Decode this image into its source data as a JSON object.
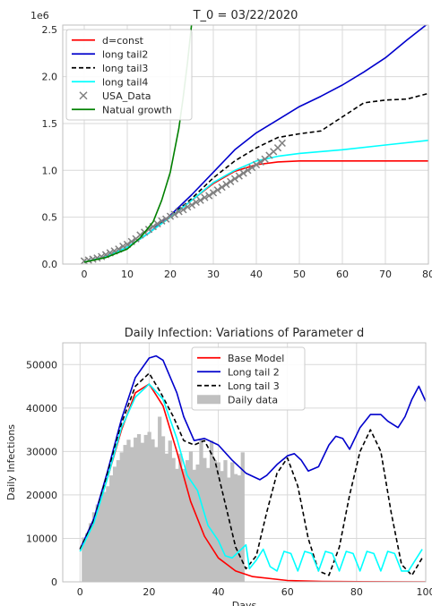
{
  "chart_data": [
    {
      "type": "line",
      "title": "T_0 = 03/22/2020",
      "xlabel": "",
      "ylabel": "",
      "y_multiplier_label": "1e6",
      "xlim": [
        -5,
        80
      ],
      "ylim": [
        0,
        2.55
      ],
      "xticks": [
        0,
        10,
        20,
        30,
        40,
        50,
        60,
        70,
        80
      ],
      "yticks": [
        0.0,
        0.5,
        1.0,
        1.5,
        2.0,
        2.5
      ],
      "ytick_labels": [
        "0.0",
        "0.5",
        "1.0",
        "1.5",
        "2.0",
        "2.5"
      ],
      "grid": true,
      "legend_position": "upper-left",
      "series": [
        {
          "name": "d=const",
          "color": "#ff0000",
          "style": "solid",
          "x": [
            0,
            5,
            10,
            15,
            20,
            25,
            30,
            35,
            40,
            45,
            50,
            60,
            70,
            80
          ],
          "y": [
            0.02,
            0.08,
            0.18,
            0.33,
            0.5,
            0.68,
            0.86,
            0.99,
            1.06,
            1.09,
            1.1,
            1.1,
            1.1,
            1.1
          ]
        },
        {
          "name": "long tail2",
          "color": "#0000cc",
          "style": "solid",
          "x": [
            0,
            5,
            10,
            15,
            20,
            25,
            30,
            35,
            40,
            45,
            50,
            55,
            60,
            65,
            70,
            75,
            80
          ],
          "y": [
            0.02,
            0.08,
            0.18,
            0.33,
            0.52,
            0.74,
            0.98,
            1.22,
            1.4,
            1.54,
            1.68,
            1.79,
            1.91,
            2.05,
            2.2,
            2.39,
            2.57
          ]
        },
        {
          "name": "long tail3",
          "color": "#000000",
          "style": "dashed",
          "x": [
            0,
            5,
            10,
            15,
            20,
            25,
            30,
            35,
            40,
            45,
            50,
            55,
            60,
            65,
            70,
            75,
            80
          ],
          "y": [
            0.02,
            0.08,
            0.18,
            0.33,
            0.51,
            0.7,
            0.92,
            1.1,
            1.24,
            1.35,
            1.39,
            1.42,
            1.57,
            1.72,
            1.75,
            1.76,
            1.82
          ]
        },
        {
          "name": "long tail4",
          "color": "#00ffff",
          "style": "solid",
          "x": [
            0,
            5,
            10,
            15,
            20,
            25,
            30,
            35,
            40,
            45,
            50,
            60,
            70,
            80
          ],
          "y": [
            0.02,
            0.08,
            0.18,
            0.33,
            0.5,
            0.68,
            0.87,
            1.0,
            1.1,
            1.15,
            1.18,
            1.22,
            1.27,
            1.32
          ]
        },
        {
          "name": "USA_Data",
          "color": "#808080",
          "style": "marker-x",
          "x": [
            0,
            1,
            2,
            3,
            4,
            5,
            6,
            7,
            8,
            9,
            10,
            11,
            12,
            13,
            14,
            15,
            16,
            17,
            18,
            19,
            20,
            21,
            22,
            23,
            24,
            25,
            26,
            27,
            28,
            29,
            30,
            31,
            32,
            33,
            34,
            35,
            36,
            37,
            38,
            39,
            40,
            41,
            42,
            43,
            44,
            45,
            46
          ],
          "y": [
            0.033,
            0.043,
            0.053,
            0.065,
            0.08,
            0.1,
            0.12,
            0.14,
            0.16,
            0.19,
            0.21,
            0.24,
            0.27,
            0.31,
            0.34,
            0.37,
            0.4,
            0.43,
            0.46,
            0.48,
            0.51,
            0.53,
            0.56,
            0.58,
            0.61,
            0.63,
            0.66,
            0.68,
            0.71,
            0.73,
            0.76,
            0.79,
            0.82,
            0.85,
            0.88,
            0.91,
            0.94,
            0.97,
            1.0,
            1.03,
            1.06,
            1.09,
            1.12,
            1.16,
            1.2,
            1.24,
            1.29
          ]
        },
        {
          "name": "Natual growth",
          "color": "#008000",
          "style": "solid",
          "x": [
            0,
            5,
            10,
            13,
            16,
            18,
            20,
            22,
            23,
            24,
            25
          ],
          "y": [
            0.02,
            0.07,
            0.16,
            0.28,
            0.45,
            0.68,
            0.98,
            1.45,
            1.78,
            2.15,
            2.58
          ]
        }
      ]
    },
    {
      "type": "line",
      "title": "Daily Infection: Variations of Parameter d",
      "xlabel": "Days",
      "ylabel": "Daily Infections",
      "xlim": [
        -5,
        100
      ],
      "ylim": [
        0,
        55000
      ],
      "xticks": [
        0,
        20,
        40,
        60,
        80,
        100
      ],
      "yticks": [
        0,
        10000,
        20000,
        30000,
        40000,
        50000
      ],
      "grid": true,
      "legend_position": "upper-center",
      "bars": {
        "name": "Daily data",
        "color": "#c0c0c0",
        "x": [
          1,
          2,
          3,
          4,
          5,
          6,
          7,
          8,
          9,
          10,
          11,
          12,
          13,
          14,
          15,
          16,
          17,
          18,
          19,
          20,
          21,
          22,
          23,
          24,
          25,
          26,
          27,
          28,
          29,
          30,
          31,
          32,
          33,
          34,
          35,
          36,
          37,
          38,
          39,
          40,
          41,
          42,
          43,
          44,
          45,
          46,
          47
        ],
        "values": [
          10200,
          11200,
          13500,
          16000,
          17800,
          19500,
          20700,
          22000,
          24500,
          26500,
          28000,
          29800,
          31500,
          32700,
          31000,
          33200,
          34000,
          32000,
          33800,
          34500,
          32800,
          31000,
          38000,
          33500,
          29500,
          32500,
          28500,
          26000,
          29500,
          26000,
          28000,
          30000,
          25800,
          27000,
          33000,
          28500,
          26200,
          32500,
          28000,
          27500,
          25500,
          28000,
          24000,
          27500,
          24800,
          24500,
          29800
        ]
      },
      "series": [
        {
          "name": "Base Model",
          "color": "#ff0000",
          "style": "solid",
          "x": [
            0,
            4,
            8,
            12,
            16,
            20,
            24,
            28,
            32,
            36,
            40,
            45,
            50,
            60,
            70,
            80,
            90,
            100
          ],
          "y": [
            7500,
            14000,
            24000,
            35000,
            43500,
            45500,
            40500,
            30000,
            18500,
            10500,
            5500,
            2500,
            1200,
            300,
            100,
            50,
            20,
            10
          ]
        },
        {
          "name": "Long tail 2",
          "color": "#0000cc",
          "style": "solid",
          "x": [
            0,
            4,
            8,
            12,
            16,
            20,
            22,
            24,
            28,
            30,
            33,
            36,
            40,
            44,
            48,
            52,
            54,
            57,
            60,
            62,
            64,
            66,
            69,
            72,
            74,
            76,
            78,
            81,
            84,
            87,
            89,
            92,
            94,
            96,
            98,
            100
          ],
          "y": [
            7500,
            14500,
            25500,
            37500,
            47000,
            51500,
            52000,
            51000,
            43500,
            38000,
            32500,
            33000,
            31500,
            28000,
            25000,
            23500,
            24500,
            27000,
            29000,
            29500,
            28000,
            25500,
            26500,
            31500,
            33500,
            33000,
            30500,
            35500,
            38500,
            38500,
            37000,
            35500,
            38000,
            42000,
            45000,
            41500
          ]
        },
        {
          "name": "Long tail 3",
          "color": "#000000",
          "style": "dashed",
          "x": [
            0,
            4,
            8,
            12,
            16,
            20,
            23,
            27,
            30,
            33,
            36,
            39,
            42,
            45,
            48,
            51,
            54,
            57,
            60,
            63,
            66,
            69,
            72,
            75,
            78,
            81,
            84,
            87,
            90,
            93,
            96,
            99
          ],
          "y": [
            7500,
            14000,
            25000,
            36500,
            45000,
            48000,
            44000,
            38000,
            32500,
            31500,
            32500,
            28000,
            18000,
            8000,
            3000,
            6000,
            16000,
            25000,
            28500,
            22000,
            10000,
            2500,
            1500,
            8000,
            20000,
            30000,
            35000,
            30000,
            16000,
            4000,
            1500,
            5500
          ]
        },
        {
          "name": "Long tail4",
          "color": "#00ffff",
          "style": "solid",
          "x": [
            0,
            4,
            8,
            12,
            16,
            20,
            24,
            28,
            31,
            34,
            37,
            40,
            42,
            44,
            46,
            48,
            49,
            51,
            53,
            55,
            57,
            59,
            61,
            63,
            65,
            67,
            69,
            71,
            73,
            75,
            77,
            79,
            81,
            83,
            85,
            87,
            89,
            91,
            93,
            95,
            97,
            99
          ],
          "y": [
            7000,
            13500,
            24000,
            35500,
            42500,
            45500,
            42000,
            33000,
            24500,
            21000,
            13000,
            9500,
            6000,
            5500,
            7000,
            8500,
            3000,
            5000,
            7500,
            3500,
            2500,
            7000,
            6500,
            2500,
            7000,
            6500,
            2500,
            7000,
            6500,
            2500,
            7000,
            6500,
            2500,
            7000,
            6500,
            2500,
            7000,
            6500,
            2500,
            2500,
            5000,
            7500
          ]
        }
      ],
      "legend_labels": [
        "Base Model",
        "Long tail 2",
        "Long tail 3",
        "Daily data"
      ]
    }
  ]
}
